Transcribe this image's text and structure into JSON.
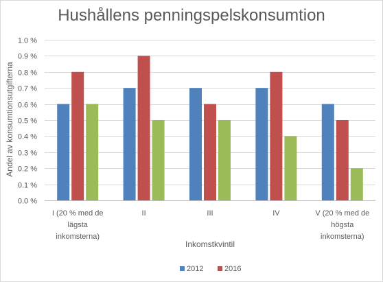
{
  "chart_data": {
    "type": "bar",
    "title": "Hushållens penningspelskonsumtion",
    "xlabel": "Inkomstkvintil",
    "ylabel": "Andel av konsumtionsutgifterna",
    "categories": [
      [
        "I (20 % med de",
        "lägsta",
        "inkomsterna)"
      ],
      [
        "II"
      ],
      [
        "III"
      ],
      [
        "IV"
      ],
      [
        "V (20 % med de",
        "högsta",
        "inkomsterna)"
      ]
    ],
    "series": [
      {
        "name": "2012",
        "color": "#4f81bd",
        "values": [
          0.6,
          0.7,
          0.7,
          0.7,
          0.6
        ]
      },
      {
        "name": "2016",
        "color": "#c0504d",
        "values": [
          0.8,
          0.9,
          0.6,
          0.8,
          0.5
        ]
      },
      {
        "name": "",
        "color": "#9bbb59",
        "values": [
          0.6,
          0.5,
          0.5,
          0.4,
          0.2
        ]
      }
    ],
    "ylim": [
      0,
      1.0
    ],
    "ytick_step": 0.1,
    "ytick_labels": [
      "0.0 %",
      "0.1 %",
      "0.2 %",
      "0.3 %",
      "0.4 %",
      "0.5 %",
      "0.6 %",
      "0.7 %",
      "0.8 %",
      "0.9 %",
      "1.0 %"
    ],
    "grid": true,
    "legend": "bottom"
  }
}
